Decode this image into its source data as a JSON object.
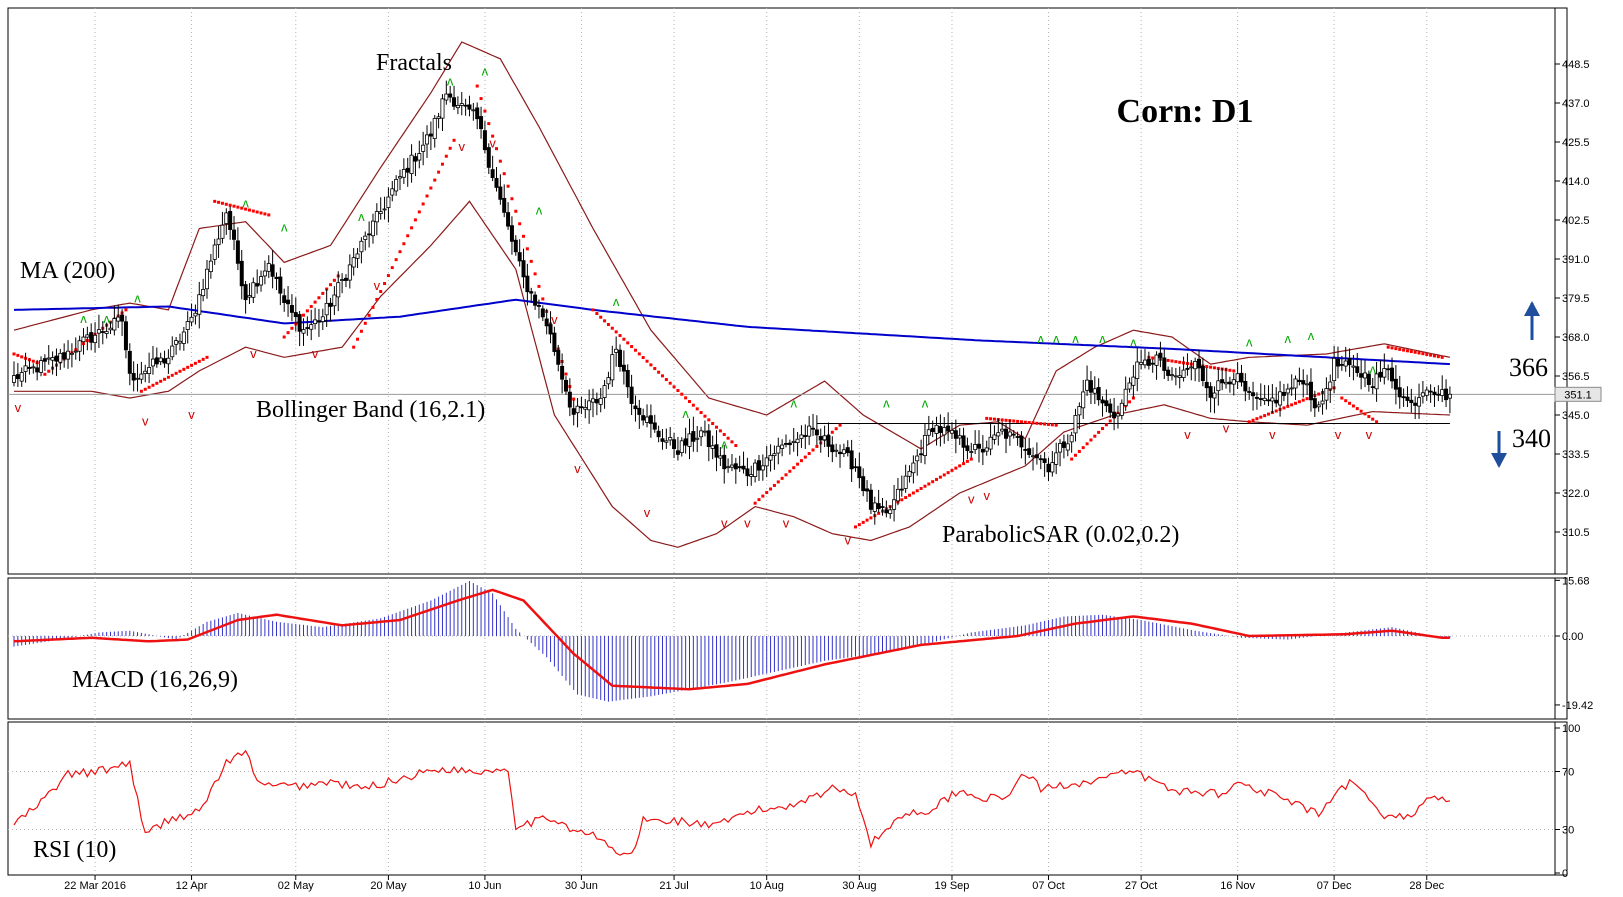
{
  "colors": {
    "candle": "#000000",
    "bollinger": "#8b1a1a",
    "ma": "#0000cc",
    "sar": "#ff0000",
    "fractal_up": "#00aa00",
    "fractal_down": "#cc0000",
    "macd_hist": "#3333cc",
    "macd_signal": "#ee1111",
    "rsi": "#ee1111",
    "support_line": "#000000",
    "grid": "#b4b4b4",
    "arrow": "#1f4e9c"
  },
  "chart_data": [
    {
      "type": "candlestick",
      "title": "Corn: D1",
      "ylim": [
        300,
        458
      ],
      "yticks": [
        "448.5",
        "437.0",
        "425.5",
        "414.0",
        "402.5",
        "391.0",
        "379.5",
        "368.0",
        "356.5",
        "345.0",
        "333.5",
        "322.0",
        "310.5"
      ],
      "current_price_label": "351.1",
      "current_price": 351.1,
      "support_level": 342.5,
      "levels": [
        {
          "label": "366",
          "direction": "up",
          "value": 366
        },
        {
          "label": "340",
          "direction": "down",
          "value": 340
        }
      ],
      "annotations": {
        "fractals": "Fractals",
        "ma": "MA (200)",
        "bollinger": "Bollinger Band (16,2.1)",
        "sar": "ParabolicSAR (0.02,0.2)"
      },
      "close_anchors": [
        [
          0,
          356
        ],
        [
          12,
          362
        ],
        [
          20,
          368
        ],
        [
          28,
          373
        ],
        [
          30,
          356
        ],
        [
          40,
          362
        ],
        [
          46,
          373
        ],
        [
          55,
          405
        ],
        [
          60,
          380
        ],
        [
          66,
          390
        ],
        [
          70,
          378
        ],
        [
          75,
          370
        ],
        [
          80,
          374
        ],
        [
          90,
          395
        ],
        [
          100,
          415
        ],
        [
          108,
          428
        ],
        [
          112,
          440
        ],
        [
          120,
          432
        ],
        [
          128,
          400
        ],
        [
          132,
          385
        ],
        [
          138,
          372
        ],
        [
          145,
          345
        ],
        [
          152,
          350
        ],
        [
          156,
          365
        ],
        [
          160,
          350
        ],
        [
          166,
          340
        ],
        [
          172,
          335
        ],
        [
          178,
          340
        ],
        [
          184,
          330
        ],
        [
          190,
          328
        ],
        [
          198,
          335
        ],
        [
          206,
          340
        ],
        [
          212,
          336
        ],
        [
          218,
          330
        ],
        [
          222,
          318
        ],
        [
          226,
          315
        ],
        [
          232,
          328
        ],
        [
          238,
          342
        ],
        [
          244,
          338
        ],
        [
          250,
          334
        ],
        [
          256,
          340
        ],
        [
          262,
          336
        ],
        [
          268,
          330
        ],
        [
          274,
          340
        ],
        [
          278,
          355
        ],
        [
          282,
          348
        ],
        [
          286,
          345
        ],
        [
          290,
          358
        ],
        [
          296,
          362
        ],
        [
          300,
          355
        ],
        [
          306,
          360
        ],
        [
          310,
          352
        ],
        [
          316,
          357
        ],
        [
          320,
          350
        ],
        [
          324,
          348
        ],
        [
          330,
          352
        ],
        [
          334,
          356
        ],
        [
          338,
          346
        ],
        [
          342,
          360
        ],
        [
          348,
          358
        ],
        [
          352,
          355
        ],
        [
          356,
          358
        ],
        [
          360,
          350
        ],
        [
          362,
          348
        ],
        [
          366,
          354
        ],
        [
          370,
          351.1
        ]
      ],
      "ma_anchors": [
        [
          0,
          376
        ],
        [
          40,
          377
        ],
        [
          70,
          372
        ],
        [
          100,
          374
        ],
        [
          130,
          379
        ],
        [
          150,
          376
        ],
        [
          190,
          371
        ],
        [
          250,
          367
        ],
        [
          300,
          364.5
        ],
        [
          340,
          362
        ],
        [
          372,
          360
        ]
      ],
      "upper_bb_anchors": [
        [
          0,
          370
        ],
        [
          20,
          376
        ],
        [
          30,
          378
        ],
        [
          40,
          376
        ],
        [
          48,
          400
        ],
        [
          60,
          402
        ],
        [
          70,
          390
        ],
        [
          82,
          395
        ],
        [
          95,
          418
        ],
        [
          108,
          440
        ],
        [
          116,
          455
        ],
        [
          126,
          450
        ],
        [
          136,
          430
        ],
        [
          150,
          400
        ],
        [
          165,
          370
        ],
        [
          180,
          350
        ],
        [
          195,
          345
        ],
        [
          210,
          355
        ],
        [
          220,
          345
        ],
        [
          235,
          335
        ],
        [
          245,
          342
        ],
        [
          255,
          343
        ],
        [
          262,
          338
        ],
        [
          270,
          358
        ],
        [
          280,
          365
        ],
        [
          290,
          370
        ],
        [
          300,
          368
        ],
        [
          310,
          360
        ],
        [
          320,
          362
        ],
        [
          340,
          363
        ],
        [
          355,
          366
        ],
        [
          372,
          362
        ]
      ],
      "lower_bb_anchors": [
        [
          0,
          352
        ],
        [
          20,
          352
        ],
        [
          30,
          350
        ],
        [
          40,
          352
        ],
        [
          48,
          358
        ],
        [
          60,
          365
        ],
        [
          70,
          362
        ],
        [
          85,
          365
        ],
        [
          95,
          380
        ],
        [
          108,
          395
        ],
        [
          118,
          408
        ],
        [
          130,
          388
        ],
        [
          140,
          345
        ],
        [
          155,
          318
        ],
        [
          165,
          308
        ],
        [
          172,
          306
        ],
        [
          182,
          310
        ],
        [
          192,
          318
        ],
        [
          202,
          315
        ],
        [
          212,
          310
        ],
        [
          222,
          308
        ],
        [
          232,
          312
        ],
        [
          245,
          322
        ],
        [
          262,
          330
        ],
        [
          272,
          340
        ],
        [
          285,
          345
        ],
        [
          298,
          348
        ],
        [
          310,
          344
        ],
        [
          320,
          343
        ],
        [
          335,
          342
        ],
        [
          352,
          346
        ],
        [
          372,
          345
        ]
      ],
      "sar_segments": [
        {
          "start": 0,
          "end": 7,
          "from": 363,
          "to": 360
        },
        {
          "start": 8,
          "end": 29,
          "from": 357,
          "to": 376
        },
        {
          "start": 33,
          "end": 50,
          "from": 352,
          "to": 362
        },
        {
          "start": 52,
          "end": 66,
          "from": 408,
          "to": 404
        },
        {
          "start": 70,
          "end": 84,
          "from": 368,
          "to": 386
        },
        {
          "start": 88,
          "end": 114,
          "from": 365,
          "to": 426
        },
        {
          "start": 120,
          "end": 146,
          "from": 442,
          "to": 346
        },
        {
          "start": 150,
          "end": 187,
          "from": 376,
          "to": 336
        },
        {
          "start": 192,
          "end": 214,
          "from": 319,
          "to": 342
        },
        {
          "start": 218,
          "end": 248,
          "from": 312,
          "to": 332
        },
        {
          "start": 252,
          "end": 270,
          "from": 344,
          "to": 342
        },
        {
          "start": 274,
          "end": 290,
          "from": 332,
          "to": 350
        },
        {
          "start": 294,
          "end": 316,
          "from": 362,
          "to": 358
        },
        {
          "start": 320,
          "end": 342,
          "from": 343,
          "to": 353
        },
        {
          "start": 344,
          "end": 353,
          "from": 350,
          "to": 343
        },
        {
          "start": 356,
          "end": 370,
          "from": 365,
          "to": 362
        }
      ],
      "fractals_up": [
        [
          18,
          371
        ],
        [
          24,
          371
        ],
        [
          32,
          377
        ],
        [
          60,
          405
        ],
        [
          70,
          398
        ],
        [
          90,
          401
        ],
        [
          113,
          441
        ],
        [
          122,
          444
        ],
        [
          136,
          403
        ],
        [
          156,
          376
        ],
        [
          174,
          343
        ],
        [
          184,
          334
        ],
        [
          202,
          346
        ],
        [
          226,
          346
        ],
        [
          236,
          346
        ],
        [
          266,
          365
        ],
        [
          270,
          365
        ],
        [
          275,
          365
        ],
        [
          282,
          365
        ],
        [
          290,
          364
        ],
        [
          320,
          364
        ],
        [
          330,
          365
        ],
        [
          336,
          366
        ],
        [
          352,
          356
        ]
      ],
      "fractals_down": [
        [
          1,
          350
        ],
        [
          34,
          346
        ],
        [
          46,
          348
        ],
        [
          62,
          366
        ],
        [
          78,
          366
        ],
        [
          94,
          386
        ],
        [
          116,
          427
        ],
        [
          124,
          428
        ],
        [
          140,
          376
        ],
        [
          146,
          332
        ],
        [
          164,
          319
        ],
        [
          184,
          316
        ],
        [
          190,
          316
        ],
        [
          200,
          316
        ],
        [
          216,
          311
        ],
        [
          248,
          323
        ],
        [
          252,
          324
        ],
        [
          304,
          342
        ],
        [
          314,
          344
        ],
        [
          326,
          342
        ],
        [
          343,
          342
        ],
        [
          351,
          342
        ]
      ],
      "x_dates": [
        {
          "index": 21,
          "label": "22 Mar 2016"
        },
        {
          "index": 46,
          "label": "12 Apr"
        },
        {
          "index": 73,
          "label": "02 May"
        },
        {
          "index": 97,
          "label": "20 May"
        },
        {
          "index": 122,
          "label": "10 Jun"
        },
        {
          "index": 147,
          "label": "30 Jun"
        },
        {
          "index": 171,
          "label": "21 Jul"
        },
        {
          "index": 195,
          "label": "10 Aug"
        },
        {
          "index": 219,
          "label": "30 Aug"
        },
        {
          "index": 243,
          "label": "19 Sep"
        },
        {
          "index": 268,
          "label": "07 Oct"
        },
        {
          "index": 292,
          "label": "27 Oct"
        },
        {
          "index": 317,
          "label": "16 Nov"
        },
        {
          "index": 342,
          "label": "07 Dec"
        },
        {
          "index": 366,
          "label": "28 Dec"
        }
      ]
    },
    {
      "type": "histogram",
      "title": "MACD (16,26,9)",
      "ylim": [
        -19.42,
        15.68
      ],
      "yticks": [
        "15.68",
        "0.00",
        "-19.42"
      ],
      "hist_anchors": [
        [
          0,
          -3
        ],
        [
          12,
          -1
        ],
        [
          22,
          1
        ],
        [
          30,
          1.5
        ],
        [
          42,
          -1
        ],
        [
          50,
          4
        ],
        [
          58,
          6.5
        ],
        [
          68,
          4
        ],
        [
          80,
          2.5
        ],
        [
          95,
          5
        ],
        [
          108,
          10
        ],
        [
          118,
          15.5
        ],
        [
          124,
          12
        ],
        [
          130,
          2
        ],
        [
          138,
          -6
        ],
        [
          146,
          -16.5
        ],
        [
          154,
          -18.5
        ],
        [
          165,
          -17
        ],
        [
          185,
          -13
        ],
        [
          210,
          -7
        ],
        [
          230,
          -4
        ],
        [
          248,
          1
        ],
        [
          262,
          3
        ],
        [
          272,
          5.5
        ],
        [
          282,
          6
        ],
        [
          292,
          4.5
        ],
        [
          306,
          1.5
        ],
        [
          318,
          -0.5
        ],
        [
          330,
          -1
        ],
        [
          345,
          1
        ],
        [
          357,
          2.5
        ],
        [
          370,
          -0.5
        ]
      ],
      "signal_anchors": [
        [
          0,
          -1.5
        ],
        [
          20,
          -0.5
        ],
        [
          35,
          -1.5
        ],
        [
          45,
          -1
        ],
        [
          58,
          4.5
        ],
        [
          68,
          6
        ],
        [
          85,
          3
        ],
        [
          100,
          4.5
        ],
        [
          115,
          10
        ],
        [
          124,
          13
        ],
        [
          132,
          10
        ],
        [
          145,
          -5
        ],
        [
          155,
          -14
        ],
        [
          175,
          -15
        ],
        [
          190,
          -13.5
        ],
        [
          210,
          -8
        ],
        [
          235,
          -2.5
        ],
        [
          260,
          0
        ],
        [
          275,
          3.5
        ],
        [
          290,
          5.5
        ],
        [
          305,
          3.5
        ],
        [
          320,
          0
        ],
        [
          345,
          0.5
        ],
        [
          357,
          1.5
        ],
        [
          370,
          -0.5
        ]
      ]
    },
    {
      "type": "line",
      "title": "RSI (10)",
      "ylim": [
        0,
        100
      ],
      "yticks": [
        "100",
        "70",
        "30",
        "0"
      ],
      "rsi_anchors": [
        [
          0,
          34
        ],
        [
          6,
          46
        ],
        [
          14,
          68
        ],
        [
          22,
          70
        ],
        [
          30,
          76
        ],
        [
          34,
          26
        ],
        [
          40,
          37
        ],
        [
          48,
          42
        ],
        [
          55,
          76
        ],
        [
          60,
          83
        ],
        [
          64,
          60
        ],
        [
          74,
          60
        ],
        [
          82,
          63
        ],
        [
          90,
          58
        ],
        [
          100,
          65
        ],
        [
          110,
          72
        ],
        [
          120,
          70
        ],
        [
          128,
          72
        ],
        [
          130,
          33
        ],
        [
          140,
          38
        ],
        [
          146,
          28
        ],
        [
          150,
          26
        ],
        [
          157,
          13
        ],
        [
          160,
          12
        ],
        [
          163,
          36
        ],
        [
          172,
          36
        ],
        [
          182,
          32
        ],
        [
          190,
          42
        ],
        [
          200,
          46
        ],
        [
          212,
          58
        ],
        [
          218,
          56
        ],
        [
          222,
          20
        ],
        [
          230,
          40
        ],
        [
          238,
          44
        ],
        [
          244,
          56
        ],
        [
          256,
          50
        ],
        [
          262,
          69
        ],
        [
          266,
          58
        ],
        [
          270,
          60
        ],
        [
          280,
          64
        ],
        [
          290,
          70
        ],
        [
          300,
          57
        ],
        [
          312,
          55
        ],
        [
          318,
          62
        ],
        [
          330,
          50
        ],
        [
          338,
          40
        ],
        [
          346,
          63
        ],
        [
          356,
          38
        ],
        [
          362,
          40
        ],
        [
          368,
          54
        ],
        [
          372,
          49
        ]
      ]
    }
  ]
}
